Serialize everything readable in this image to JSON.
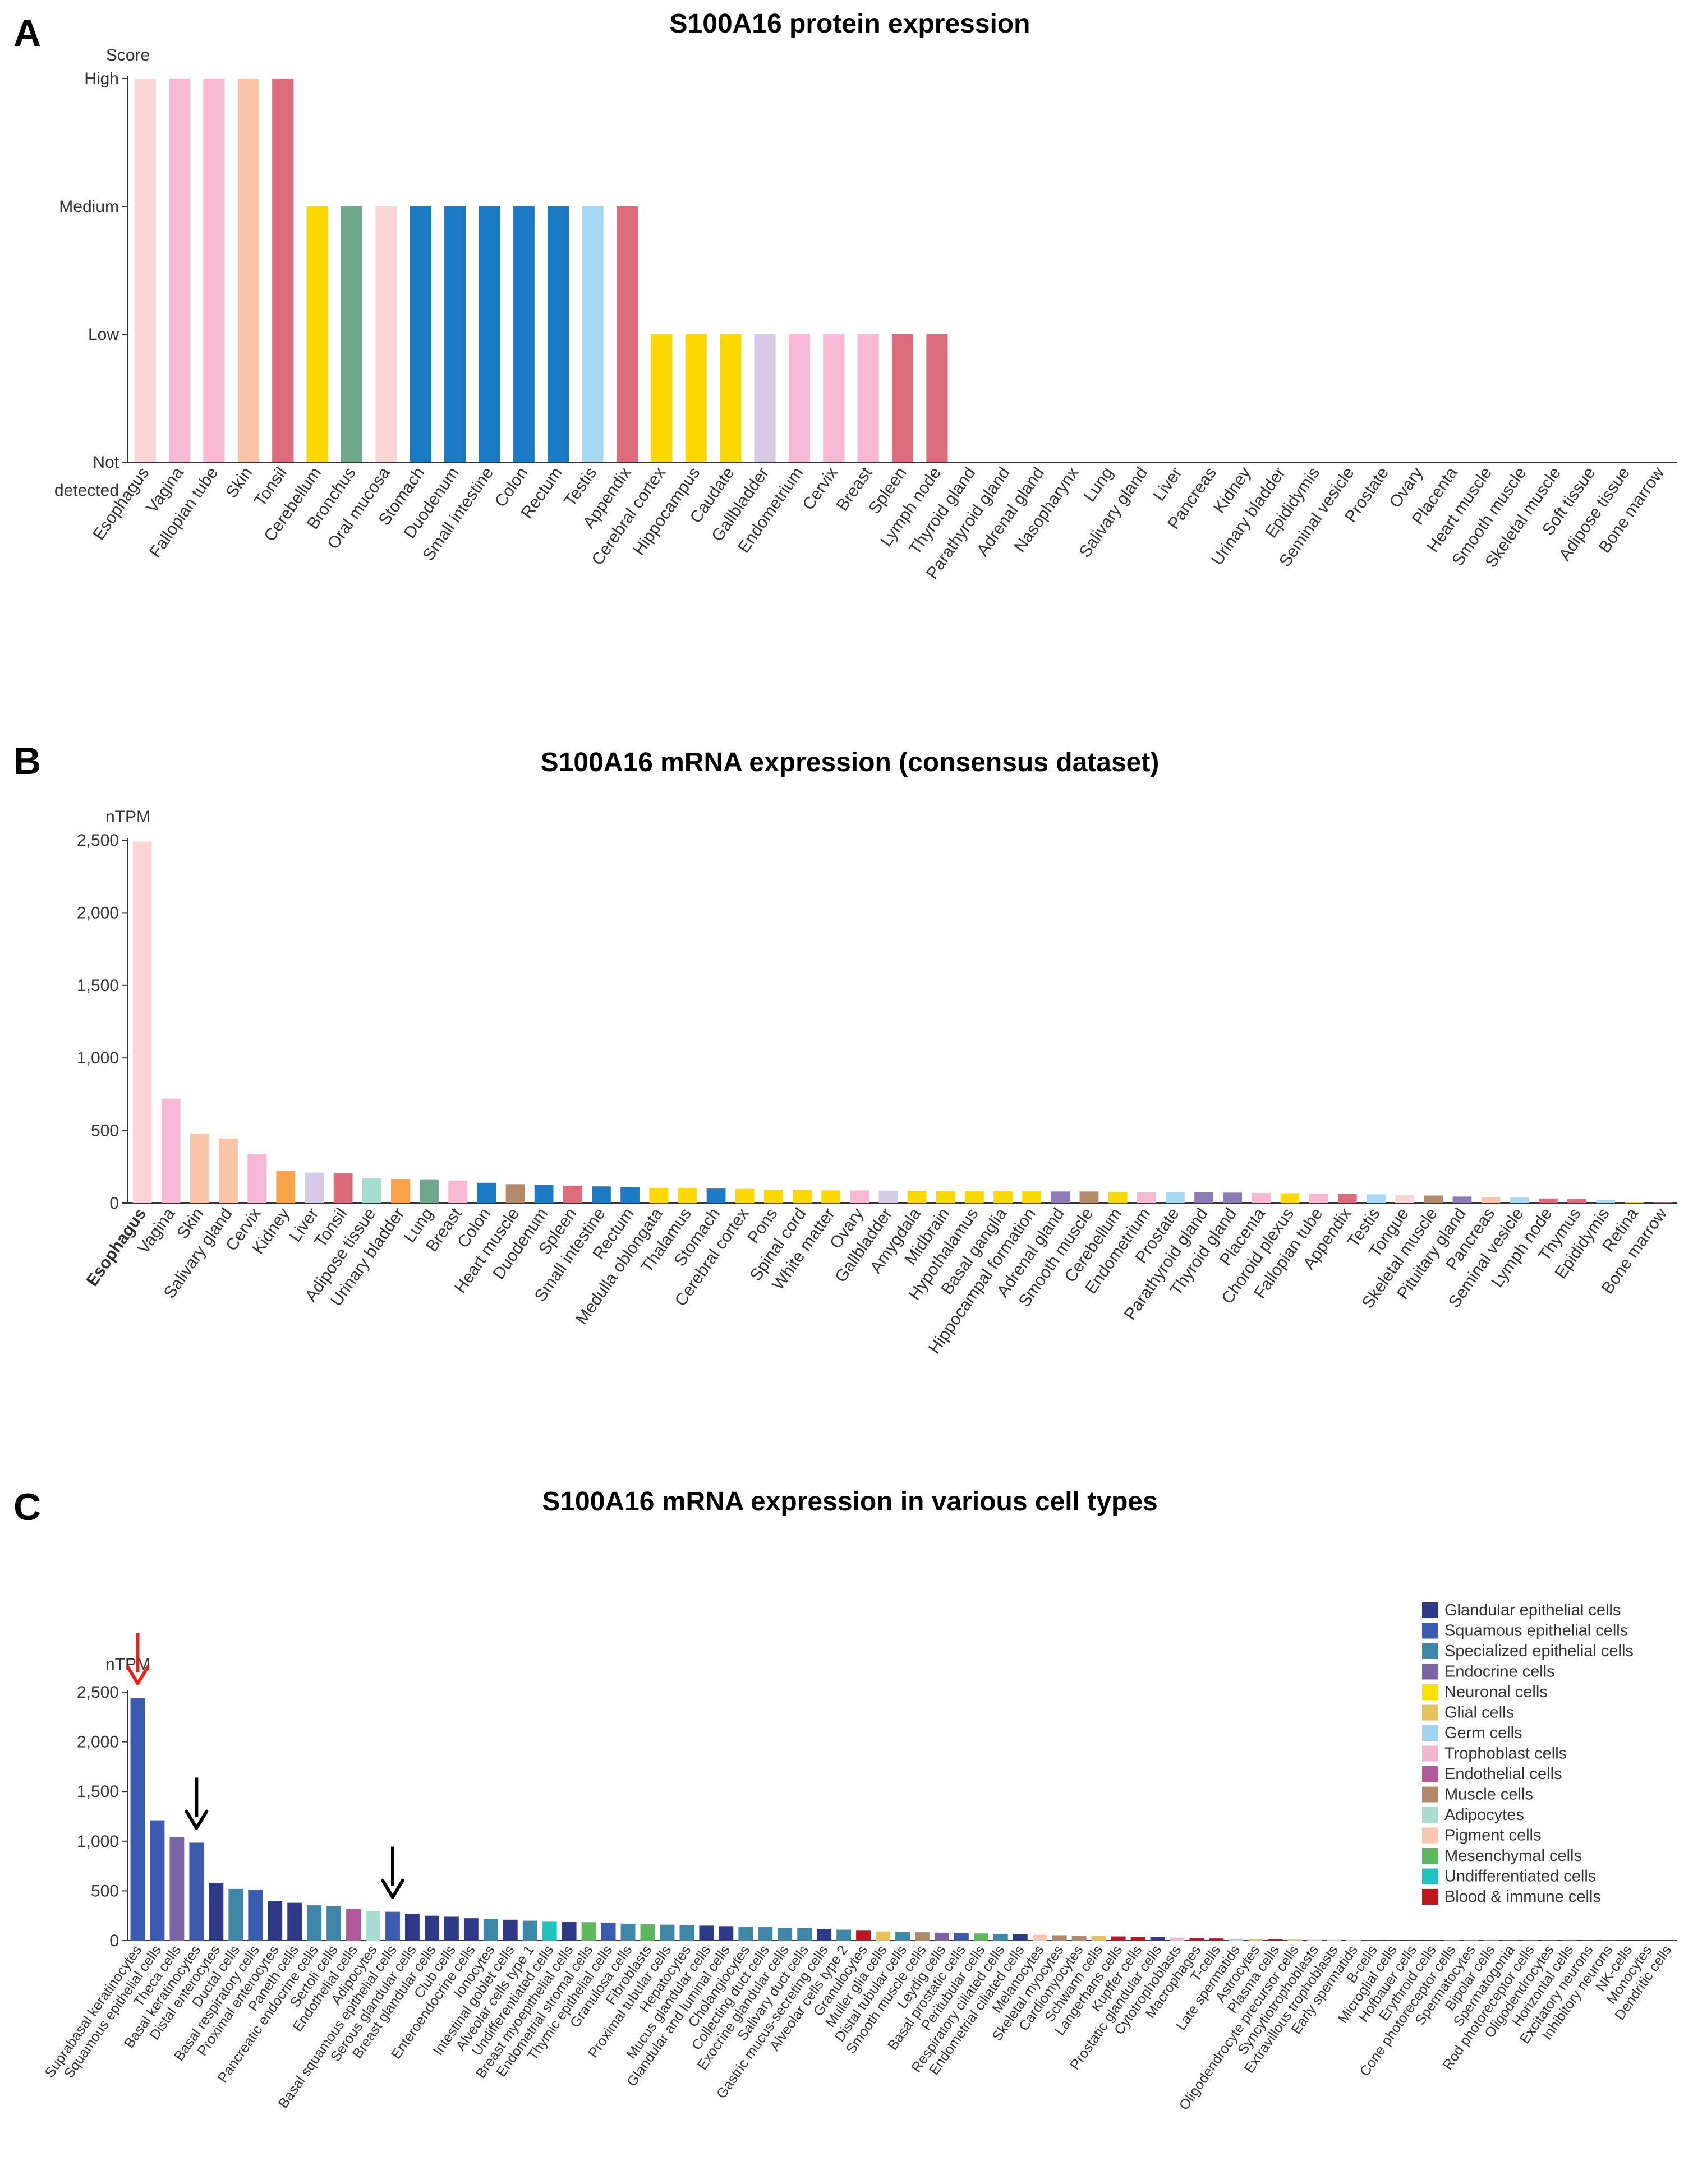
{
  "panels": {
    "a_letter": "A",
    "b_letter": "B",
    "c_letter": "C"
  },
  "chart_data": [
    {
      "type": "bar",
      "title": "S100A16 protein expression",
      "ylabel": "Score",
      "xlabel": "",
      "y_ticks": [
        "Not detected",
        "Low",
        "Medium",
        "High"
      ],
      "ylim": [
        0,
        3
      ],
      "categories": [
        "Esophagus",
        "Vagina",
        "Fallopian tube",
        "Skin",
        "Tonsil",
        "Cerebellum",
        "Bronchus",
        "Oral mucosa",
        "Stomach",
        "Duodenum",
        "Small intestine",
        "Colon",
        "Rectum",
        "Testis",
        "Appendix",
        "Cerebral cortex",
        "Hippocampus",
        "Caudate",
        "Gallbladder",
        "Endometrium",
        "Cervix",
        "Breast",
        "Spleen",
        "Lymph node",
        "Thyroid gland",
        "Parathyroid gland",
        "Adrenal gland",
        "Nasopharynx",
        "Lung",
        "Salivary gland",
        "Liver",
        "Pancreas",
        "Kidney",
        "Urinary bladder",
        "Epididymis",
        "Seminal vesicle",
        "Prostate",
        "Ovary",
        "Placenta",
        "Heart muscle",
        "Smooth muscle",
        "Skeletal muscle",
        "Soft tissue",
        "Adipose tissue",
        "Bone marrow"
      ],
      "values": [
        3,
        3,
        3,
        3,
        3,
        2,
        2,
        2,
        2,
        2,
        2,
        2,
        2,
        2,
        2,
        1,
        1,
        1,
        1,
        1,
        1,
        1,
        1,
        1,
        0,
        0,
        0,
        0,
        0,
        0,
        0,
        0,
        0,
        0,
        0,
        0,
        0,
        0,
        0,
        0,
        0,
        0,
        0,
        0,
        0
      ],
      "colors": [
        "#fbd5d5",
        "#f6b8d2",
        "#f6b8d2",
        "#f9c4a8",
        "#dc6b7c",
        "#fbd900",
        "#6fa88f",
        "#fbd5d5",
        "#1b7ac4",
        "#1b7ac4",
        "#1b7ac4",
        "#1b7ac4",
        "#1b7ac4",
        "#a7d8f5",
        "#dc6b7c",
        "#fbd900",
        "#fbd900",
        "#fbd900",
        "#d5cbe6",
        "#f6b8d2",
        "#f6b8d2",
        "#f6b8d2",
        "#dc6b7c",
        "#dc6b7c",
        "#8e7ab5",
        "#8e7ab5",
        "#8e7ab5",
        "#6fa88f",
        "#6fa88f",
        "#f9c4a8",
        "#d5cbe6",
        "#f9c4a8",
        "#f9a24a",
        "#f9a24a",
        "#a7d8f5",
        "#a7d8f5",
        "#a7d8f5",
        "#f6b8d2",
        "#f6b8d2",
        "#b48a6a",
        "#b48a6a",
        "#b48a6a",
        "#b48a6a",
        "#a5dcd1",
        "#dc6b7c"
      ]
    },
    {
      "type": "bar",
      "title": "S100A16 mRNA expression (consensus dataset)",
      "ylabel": "nTPM",
      "xlabel": "",
      "ylim": [
        0,
        2500
      ],
      "y_ticks": [
        "0",
        "500",
        "1,000",
        "1,500",
        "2,000",
        "2,500"
      ],
      "y_tick_values": [
        0,
        500,
        1000,
        1500,
        2000,
        2500
      ],
      "highlight": "Esophagus",
      "categories": [
        "Esophagus",
        "Vagina",
        "Skin",
        "Salivary gland",
        "Cervix",
        "Kidney",
        "Liver",
        "Tonsil",
        "Adipose tissue",
        "Urinary bladder",
        "Lung",
        "Breast",
        "Colon",
        "Heart muscle",
        "Duodenum",
        "Spleen",
        "Small intestine",
        "Rectum",
        "Medulla oblongata",
        "Thalamus",
        "Stomach",
        "Cerebral cortex",
        "Pons",
        "Spinal cord",
        "White matter",
        "Ovary",
        "Gallbladder",
        "Amygdala",
        "Midbrain",
        "Hypothalamus",
        "Basal ganglia",
        "Hippocampal formation",
        "Adrenal gland",
        "Smooth muscle",
        "Cerebellum",
        "Endometrium",
        "Prostate",
        "Parathyroid gland",
        "Thyroid gland",
        "Placenta",
        "Choroid plexus",
        "Fallopian tube",
        "Appendix",
        "Testis",
        "Tongue",
        "Skeletal muscle",
        "Pituitary gland",
        "Pancreas",
        "Seminal vesicle",
        "Lymph node",
        "Thymus",
        "Epididymis",
        "Retina",
        "Bone marrow"
      ],
      "values": [
        2490,
        720,
        480,
        445,
        340,
        220,
        210,
        205,
        170,
        165,
        160,
        155,
        140,
        130,
        125,
        120,
        115,
        110,
        105,
        105,
        100,
        98,
        92,
        90,
        88,
        87,
        86,
        85,
        84,
        83,
        83,
        82,
        80,
        80,
        78,
        77,
        76,
        75,
        72,
        70,
        68,
        66,
        64,
        60,
        55,
        52,
        45,
        40,
        38,
        32,
        28,
        20,
        8,
        3
      ],
      "colors": [
        "#fbd5d5",
        "#f6b8d2",
        "#f9c4a8",
        "#f9c4a8",
        "#f6b8d2",
        "#f9a24a",
        "#d5cbe6",
        "#dc6b7c",
        "#a5dcd1",
        "#f9a24a",
        "#6fa88f",
        "#f6b8d2",
        "#1b7ac4",
        "#b48a6a",
        "#1b7ac4",
        "#dc6b7c",
        "#1b7ac4",
        "#1b7ac4",
        "#fbd900",
        "#fbd900",
        "#1b7ac4",
        "#fbd900",
        "#fbd900",
        "#fbd900",
        "#fbd900",
        "#f6b8d2",
        "#d5cbe6",
        "#fbd900",
        "#fbd900",
        "#fbd900",
        "#fbd900",
        "#fbd900",
        "#8e7ab5",
        "#b48a6a",
        "#fbd900",
        "#f6b8d2",
        "#a7d8f5",
        "#8e7ab5",
        "#8e7ab5",
        "#f6b8d2",
        "#fbd900",
        "#f6b8d2",
        "#dc6b7c",
        "#a7d8f5",
        "#fbd5d5",
        "#b48a6a",
        "#8e7ab5",
        "#f9c4a8",
        "#a7d8f5",
        "#dc6b7c",
        "#dc6b7c",
        "#a7d8f5",
        "#fbd900",
        "#dc6b7c"
      ]
    },
    {
      "type": "bar",
      "title": "S100A16 mRNA expression in various cell types",
      "ylabel": "nTPM",
      "xlabel": "",
      "ylim": [
        0,
        2500
      ],
      "y_ticks": [
        "0",
        "500",
        "1,000",
        "1,500",
        "2,000",
        "2,500"
      ],
      "y_tick_values": [
        0,
        500,
        1000,
        1500,
        2000,
        2500
      ],
      "annotations": [
        {
          "type": "arrow",
          "color": "#e8201c",
          "target": "Suprabasal keratinocytes"
        },
        {
          "type": "arrow",
          "color": "#000000",
          "target": "Basal keratinocytes"
        },
        {
          "type": "arrow",
          "color": "#000000",
          "target": "Basal squamous epithelial cells"
        }
      ],
      "legend": [
        {
          "label": "Glandular epithelial cells",
          "color": "#2e3a87"
        },
        {
          "label": "Squamous epithelial cells",
          "color": "#3a5bb0"
        },
        {
          "label": "Specialized epithelial cells",
          "color": "#3f87a8"
        },
        {
          "label": "Endocrine cells",
          "color": "#7a64a6"
        },
        {
          "label": "Neuronal cells",
          "color": "#f8e000"
        },
        {
          "label": "Glial cells",
          "color": "#e6c15a"
        },
        {
          "label": "Germ cells",
          "color": "#9fd5f2"
        },
        {
          "label": "Trophoblast cells",
          "color": "#f4b6d3"
        },
        {
          "label": "Endothelial cells",
          "color": "#b05a9c"
        },
        {
          "label": "Muscle cells",
          "color": "#b08a68"
        },
        {
          "label": "Adipocytes",
          "color": "#a9ddd2"
        },
        {
          "label": "Pigment cells",
          "color": "#f9c6ae"
        },
        {
          "label": "Mesenchymal cells",
          "color": "#5bb85c"
        },
        {
          "label": "Undifferentiated cells",
          "color": "#1ec4c0"
        },
        {
          "label": "Blood & immune cells",
          "color": "#c0141f"
        }
      ],
      "categories": [
        "Suprabasal keratinocytes",
        "Squamous epithelial cells",
        "Theca cells",
        "Basal keratinocytes",
        "Distal enterocytes",
        "Ductal cells",
        "Basal respiratory cells",
        "Proximal enterocytes",
        "Paneth cells",
        "Pancreatic endocrine cells",
        "Sertoli cells",
        "Endothelial cells",
        "Adipocytes",
        "Basal squamous epithelial cells",
        "Serous glandular cells",
        "Breast glandular cells",
        "Club cells",
        "Enteroendocrine cells",
        "Ionocytes",
        "Intestinal goblet cells",
        "Alveolar cells type 1",
        "Undifferentiated cells",
        "Breast myoepithelial cells",
        "Endometrial stromal cells",
        "Thymic epithelial cells",
        "Granulosa cells",
        "Fibroblasts",
        "Proximal tubular cells",
        "Hepatocytes",
        "Mucus glandular cells",
        "Glandular and luminal cells",
        "Cholangiocytes",
        "Collecting duct cells",
        "Exocrine glandular cells",
        "Salivary duct cells",
        "Gastric mucus-secreting cells",
        "Alveolar cells type 2",
        "Granulocytes",
        "Muller glia cells",
        "Distal tubular cells",
        "Smooth muscle cells",
        "Leydig cells",
        "Basal prostatic cells",
        "Peritubular cells",
        "Respiratory ciliated cells",
        "Endometrial ciliated cells",
        "Melanocytes",
        "Skeletal myocytes",
        "Cardiomyocytes",
        "Schwann cells",
        "Langerhans cells",
        "Kupffer cells",
        "Prostatic glandular cells",
        "Cytotrophoblasts",
        "Macrophages",
        "T-cells",
        "Late spermatids",
        "Astrocytes",
        "Plasma cells",
        "Oligodendrocyte precursor cells",
        "Syncytiotrophoblasts",
        "Extravillous trophoblasts",
        "Early spermatids",
        "B-cells",
        "Microglial cells",
        "Hofbauer cells",
        "Erythroid cells",
        "Cone photoreceptor cells",
        "Spermatocytes",
        "Bipolar cells",
        "Spermatogonia",
        "Rod photoreceptor cells",
        "Oligodendrocytes",
        "Horizontal cells",
        "Excitatory neurons",
        "Inhibitory neurons",
        "NK-cells",
        "Monocytes",
        "Dendritic cells"
      ],
      "values": [
        2440,
        1210,
        1040,
        985,
        580,
        520,
        510,
        395,
        380,
        355,
        345,
        320,
        295,
        290,
        270,
        250,
        240,
        225,
        218,
        210,
        200,
        195,
        190,
        185,
        180,
        170,
        165,
        160,
        155,
        150,
        145,
        140,
        135,
        130,
        125,
        118,
        110,
        100,
        92,
        88,
        84,
        80,
        76,
        72,
        68,
        64,
        58,
        54,
        50,
        46,
        42,
        38,
        34,
        30,
        26,
        22,
        18,
        15,
        12,
        10,
        8,
        7,
        6,
        5,
        5,
        4,
        4,
        3,
        3,
        3,
        2,
        2,
        2,
        2,
        1,
        1,
        1,
        1,
        1
      ],
      "colors": [
        "#3a5bb0",
        "#3a5bb0",
        "#7a64a6",
        "#3a5bb0",
        "#2e3a87",
        "#3f87a8",
        "#3a5bb0",
        "#2e3a87",
        "#2e3a87",
        "#3f87a8",
        "#3f87a8",
        "#b05a9c",
        "#a9ddd2",
        "#3a5bb0",
        "#2e3a87",
        "#2e3a87",
        "#2e3a87",
        "#2e3a87",
        "#3f87a8",
        "#2e3a87",
        "#3f87a8",
        "#1ec4c0",
        "#2e3a87",
        "#5bb85c",
        "#3a5bb0",
        "#3f87a8",
        "#5bb85c",
        "#3f87a8",
        "#3f87a8",
        "#2e3a87",
        "#2e3a87",
        "#3f87a8",
        "#3f87a8",
        "#3f87a8",
        "#3f87a8",
        "#2e3a87",
        "#3f87a8",
        "#c0141f",
        "#e6c15a",
        "#3f87a8",
        "#b08a68",
        "#7a64a6",
        "#3a5bb0",
        "#5bb85c",
        "#3f87a8",
        "#2e3a87",
        "#f9c6ae",
        "#b08a68",
        "#b08a68",
        "#e6c15a",
        "#c0141f",
        "#c0141f",
        "#2e3a87",
        "#f4b6d3",
        "#c0141f",
        "#c0141f",
        "#9fd5f2",
        "#e6c15a",
        "#c0141f",
        "#e6c15a",
        "#f4b6d3",
        "#f4b6d3",
        "#9fd5f2",
        "#c0141f",
        "#c0141f",
        "#c0141f",
        "#c0141f",
        "#f8e000",
        "#9fd5f2",
        "#f8e000",
        "#9fd5f2",
        "#f8e000",
        "#e6c15a",
        "#f8e000",
        "#f8e000",
        "#f8e000",
        "#c0141f",
        "#c0141f",
        "#c0141f"
      ]
    }
  ]
}
